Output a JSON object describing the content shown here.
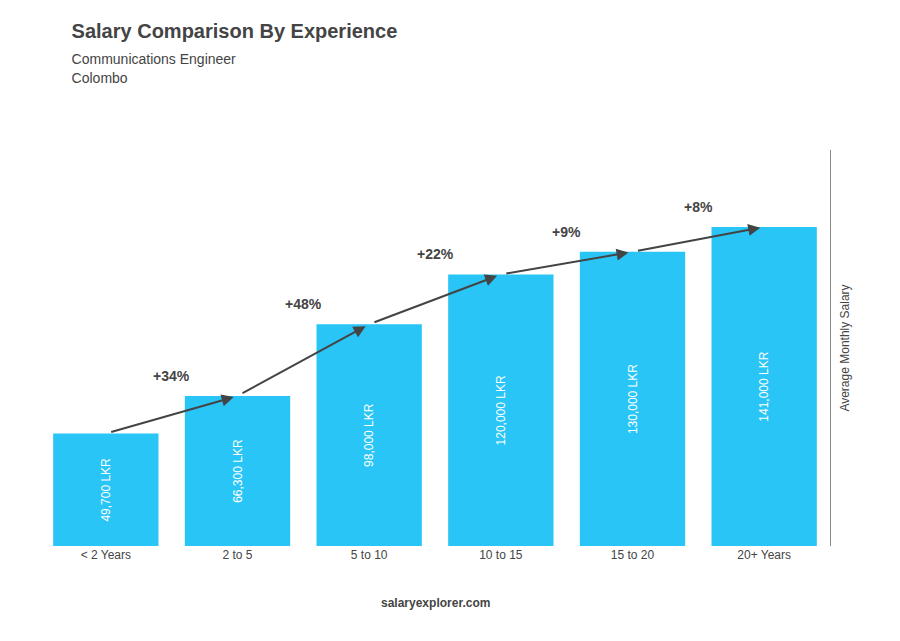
{
  "chart_data": {
    "type": "bar",
    "title": "Salary Comparison By Experience",
    "subtitle": [
      "Communications Engineer",
      "Colombo"
    ],
    "ylabel": "Average Monthly Salary",
    "categories": [
      "< 2 Years",
      "2 to 5",
      "5 to 10",
      "10 to 15",
      "15 to 20",
      "20+ Years"
    ],
    "values": [
      49700,
      66300,
      98000,
      120000,
      130000,
      141000
    ],
    "value_labels": [
      "49,700 LKR",
      "66,300 LKR",
      "98,000 LKR",
      "120,000 LKR",
      "130,000 LKR",
      "141,000 LKR"
    ],
    "data_labels": true,
    "color": "#29C5F6",
    "ylim": [
      0,
      175000
    ],
    "tick_labels": "x",
    "grid": false,
    "annotations": [
      {
        "text": "+34%",
        "from": "< 2 Years",
        "to": "2 to 5"
      },
      {
        "text": "+48%",
        "from": "2 to 5",
        "to": "5 to 10"
      },
      {
        "text": "+22%",
        "from": "5 to 10",
        "to": "10 to 15"
      },
      {
        "text": "+9%",
        "from": "10 to 15",
        "to": "15 to 20"
      },
      {
        "text": "+8%",
        "from": "15 to 20",
        "to": "20+ Years"
      },
      {
        "text": "salaryexplorer.com"
      }
    ]
  }
}
